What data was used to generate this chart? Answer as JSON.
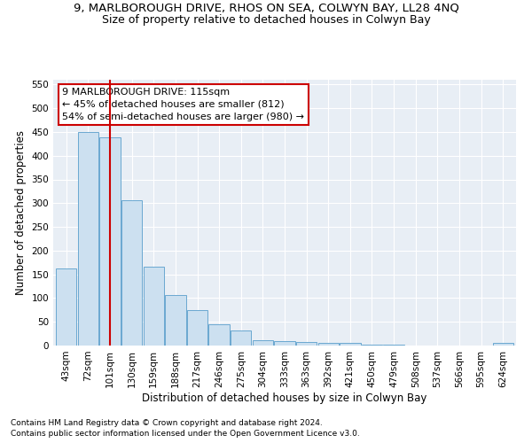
{
  "title": "9, MARLBOROUGH DRIVE, RHOS ON SEA, COLWYN BAY, LL28 4NQ",
  "subtitle": "Size of property relative to detached houses in Colwyn Bay",
  "xlabel": "Distribution of detached houses by size in Colwyn Bay",
  "ylabel": "Number of detached properties",
  "footnote1": "Contains HM Land Registry data © Crown copyright and database right 2024.",
  "footnote2": "Contains public sector information licensed under the Open Government Licence v3.0.",
  "categories": [
    "43sqm",
    "72sqm",
    "101sqm",
    "130sqm",
    "159sqm",
    "188sqm",
    "217sqm",
    "246sqm",
    "275sqm",
    "304sqm",
    "333sqm",
    "363sqm",
    "392sqm",
    "421sqm",
    "450sqm",
    "479sqm",
    "508sqm",
    "537sqm",
    "566sqm",
    "595sqm",
    "624sqm"
  ],
  "values": [
    163,
    450,
    438,
    307,
    167,
    106,
    74,
    45,
    32,
    11,
    10,
    8,
    5,
    5,
    1,
    1,
    0,
    0,
    0,
    0,
    5
  ],
  "bar_color": "#cce0f0",
  "bar_edge_color": "#6aa8d0",
  "red_line_index": 2,
  "ylim": [
    0,
    560
  ],
  "yticks": [
    0,
    50,
    100,
    150,
    200,
    250,
    300,
    350,
    400,
    450,
    500,
    550
  ],
  "annotation_text": "9 MARLBOROUGH DRIVE: 115sqm\n← 45% of detached houses are smaller (812)\n54% of semi-detached houses are larger (980) →",
  "annotation_box_color": "#ffffff",
  "annotation_box_edge": "#cc0000",
  "bg_color": "#e8eef5",
  "grid_color": "#ffffff",
  "title_fontsize": 9.5,
  "subtitle_fontsize": 9,
  "axis_label_fontsize": 8.5,
  "tick_fontsize": 7.5,
  "annotation_fontsize": 8,
  "footnote_fontsize": 6.5
}
